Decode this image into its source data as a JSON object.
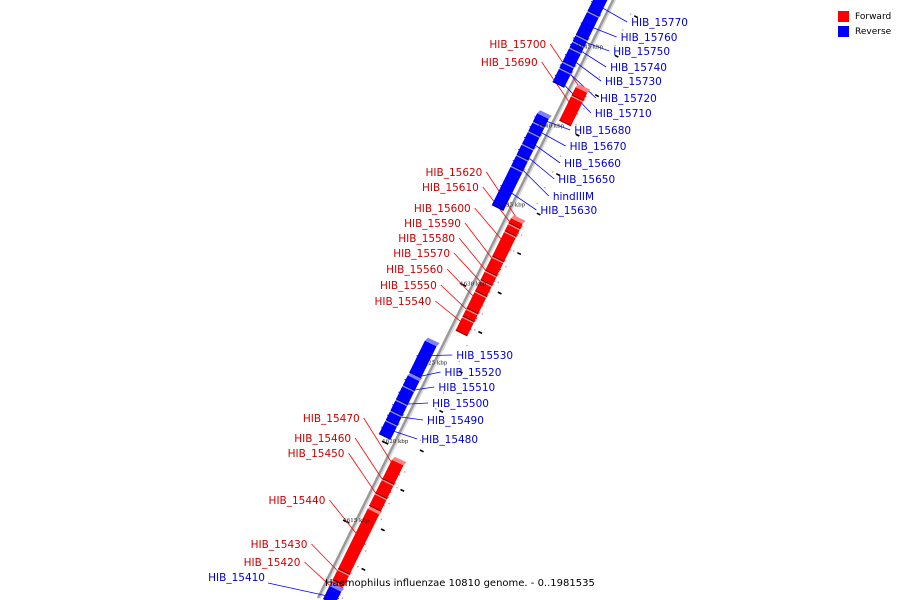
{
  "legend": [
    {
      "label": "Forward",
      "color": "#ff0000"
    },
    {
      "label": "Reverse",
      "color": "#0000ff"
    }
  ],
  "caption": "Haemophilus influenzae 10810 genome. - 0..1981535",
  "genome": {
    "start_kbp": 1610.4,
    "end_kbp": 1648.4,
    "ticks": [
      1615,
      1620,
      1625,
      1630,
      1635,
      1640,
      1645
    ],
    "tick_suffix": " kbp"
  },
  "colors": {
    "forward": "#ff0000",
    "reverse": "#0000ff",
    "backbone": "#999999"
  },
  "genes": [
    {
      "id": "HIB_15410",
      "strand": "reverse",
      "start_kbp": 1610.5,
      "end_kbp": 1611.3
    },
    {
      "id": "HIB_15420",
      "strand": "forward",
      "start_kbp": 1610.6,
      "end_kbp": 1611.6
    },
    {
      "id": "HIB_15430",
      "strand": "forward",
      "start_kbp": 1611.7,
      "end_kbp": 1612.3
    },
    {
      "id": "HIB_15440",
      "strand": "forward",
      "start_kbp": 1612.4,
      "end_kbp": 1616.2
    },
    {
      "id": "HIB_15450",
      "strand": "forward",
      "start_kbp": 1616.4,
      "end_kbp": 1617.1
    },
    {
      "id": "HIB_15460",
      "strand": "forward",
      "start_kbp": 1617.2,
      "end_kbp": 1618.0
    },
    {
      "id": "HIB_15470",
      "strand": "forward",
      "start_kbp": 1618.1,
      "end_kbp": 1619.3
    },
    {
      "id": "HIB_15480",
      "strand": "reverse",
      "start_kbp": 1620.3,
      "end_kbp": 1621.1
    },
    {
      "id": "HIB_15490",
      "strand": "reverse",
      "start_kbp": 1621.2,
      "end_kbp": 1621.7
    },
    {
      "id": "HIB_15500",
      "strand": "reverse",
      "start_kbp": 1621.8,
      "end_kbp": 1622.4
    },
    {
      "id": "HIB_15510",
      "strand": "reverse",
      "start_kbp": 1622.5,
      "end_kbp": 1623.3
    },
    {
      "id": "HIB_15520",
      "strand": "reverse",
      "start_kbp": 1623.4,
      "end_kbp": 1624.0
    },
    {
      "id": "HIB_15530",
      "strand": "reverse",
      "start_kbp": 1624.2,
      "end_kbp": 1626.2
    },
    {
      "id": "HIB_15540",
      "strand": "forward",
      "start_kbp": 1627.5,
      "end_kbp": 1628.3
    },
    {
      "id": "HIB_15550",
      "strand": "forward",
      "start_kbp": 1628.4,
      "end_kbp": 1628.8
    },
    {
      "id": "HIB_15560",
      "strand": "forward",
      "start_kbp": 1628.9,
      "end_kbp": 1629.9
    },
    {
      "id": "HIB_15570",
      "strand": "forward",
      "start_kbp": 1630.0,
      "end_kbp": 1630.6
    },
    {
      "id": "HIB_15580",
      "strand": "forward",
      "start_kbp": 1630.7,
      "end_kbp": 1631.2
    },
    {
      "id": "HIB_15590",
      "strand": "forward",
      "start_kbp": 1631.3,
      "end_kbp": 1632.1
    },
    {
      "id": "HIB_15600",
      "strand": "forward",
      "start_kbp": 1632.2,
      "end_kbp": 1633.7
    },
    {
      "id": "HIB_15610",
      "strand": "forward",
      "start_kbp": 1633.8,
      "end_kbp": 1634.2
    },
    {
      "id": "HIB_15620",
      "strand": "forward",
      "start_kbp": 1634.3,
      "end_kbp": 1634.6
    },
    {
      "id": "HIB_15630",
      "strand": "reverse",
      "start_kbp": 1634.8,
      "end_kbp": 1637.2
    },
    {
      "id": "hindIIIM",
      "strand": "reverse",
      "start_kbp": 1637.3,
      "end_kbp": 1637.9
    },
    {
      "id": "HIB_15650",
      "strand": "reverse",
      "start_kbp": 1638.0,
      "end_kbp": 1638.6
    },
    {
      "id": "HIB_15660",
      "strand": "reverse",
      "start_kbp": 1638.7,
      "end_kbp": 1639.4
    },
    {
      "id": "HIB_15670",
      "strand": "reverse",
      "start_kbp": 1639.5,
      "end_kbp": 1640.0
    },
    {
      "id": "HIB_15680",
      "strand": "reverse",
      "start_kbp": 1640.1,
      "end_kbp": 1640.6
    },
    {
      "id": "HIB_15690",
      "strand": "forward",
      "start_kbp": 1640.8,
      "end_kbp": 1642.3
    },
    {
      "id": "HIB_15700",
      "strand": "forward",
      "start_kbp": 1642.4,
      "end_kbp": 1642.9
    },
    {
      "id": "HIB_15710",
      "strand": "reverse",
      "start_kbp": 1642.6,
      "end_kbp": 1643.4
    },
    {
      "id": "HIB_15720",
      "strand": "reverse",
      "start_kbp": 1643.5,
      "end_kbp": 1643.8
    },
    {
      "id": "HIB_15730",
      "strand": "reverse",
      "start_kbp": 1643.9,
      "end_kbp": 1644.7
    },
    {
      "id": "HIB_15740",
      "strand": "reverse",
      "start_kbp": 1644.8,
      "end_kbp": 1645.1
    },
    {
      "id": "HIB_15750",
      "strand": "reverse",
      "start_kbp": 1645.2,
      "end_kbp": 1645.5
    },
    {
      "id": "HIB_15760",
      "strand": "reverse",
      "start_kbp": 1645.6,
      "end_kbp": 1647.0
    },
    {
      "id": "HIB_15770",
      "strand": "reverse",
      "start_kbp": 1647.1,
      "end_kbp": 1648.2
    }
  ]
}
